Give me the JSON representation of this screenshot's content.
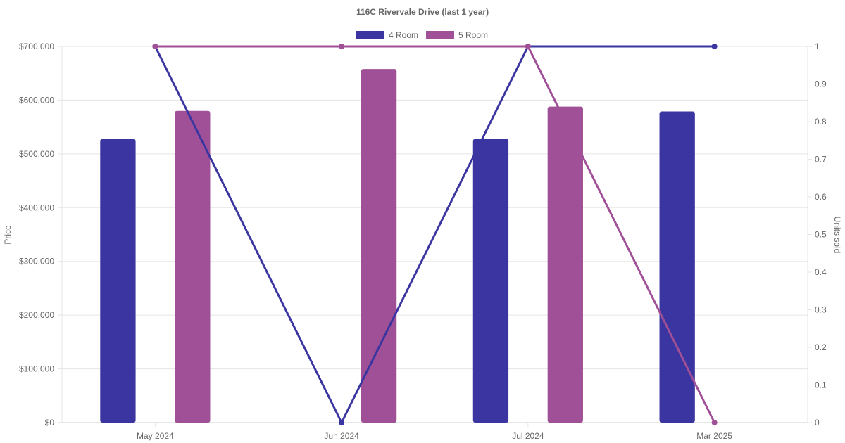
{
  "chart_data": {
    "type": "bar",
    "title": "116C Rivervale Drive (last 1 year)",
    "categories": [
      "May 2024",
      "Jun 2024",
      "Jul 2024",
      "Mar 2025"
    ],
    "y_left": {
      "label": "Price",
      "ylim": [
        0,
        700000
      ],
      "ticks": [
        "$0",
        "$100,000",
        "$200,000",
        "$300,000",
        "$400,000",
        "$500,000",
        "$600,000",
        "$700,000"
      ]
    },
    "y_right": {
      "label": "Units sold",
      "ylim": [
        0,
        1
      ],
      "ticks": [
        "0",
        "0.1",
        "0.2",
        "0.3",
        "0.4",
        "0.5",
        "0.6",
        "0.7",
        "0.8",
        "0.9",
        "1"
      ]
    },
    "bar_series": [
      {
        "name": "4 Room",
        "color": "#3a35a0",
        "values": [
          528000,
          null,
          528000,
          579000
        ]
      },
      {
        "name": "5 Room",
        "color": "#a05096",
        "values": [
          580000,
          658000,
          588000,
          null
        ]
      }
    ],
    "line_series": [
      {
        "name": "4 Room",
        "color": "#3a35a0",
        "axis": "right",
        "values": [
          1,
          0,
          1,
          1
        ]
      },
      {
        "name": "5 Room",
        "color": "#a05096",
        "axis": "right",
        "values": [
          1,
          1,
          1,
          0
        ]
      }
    ],
    "legend": {
      "position": "top",
      "entries": [
        {
          "label": "4 Room",
          "color": "#3a35a0"
        },
        {
          "label": "5 Room",
          "color": "#a05096"
        }
      ]
    },
    "grid": true
  }
}
